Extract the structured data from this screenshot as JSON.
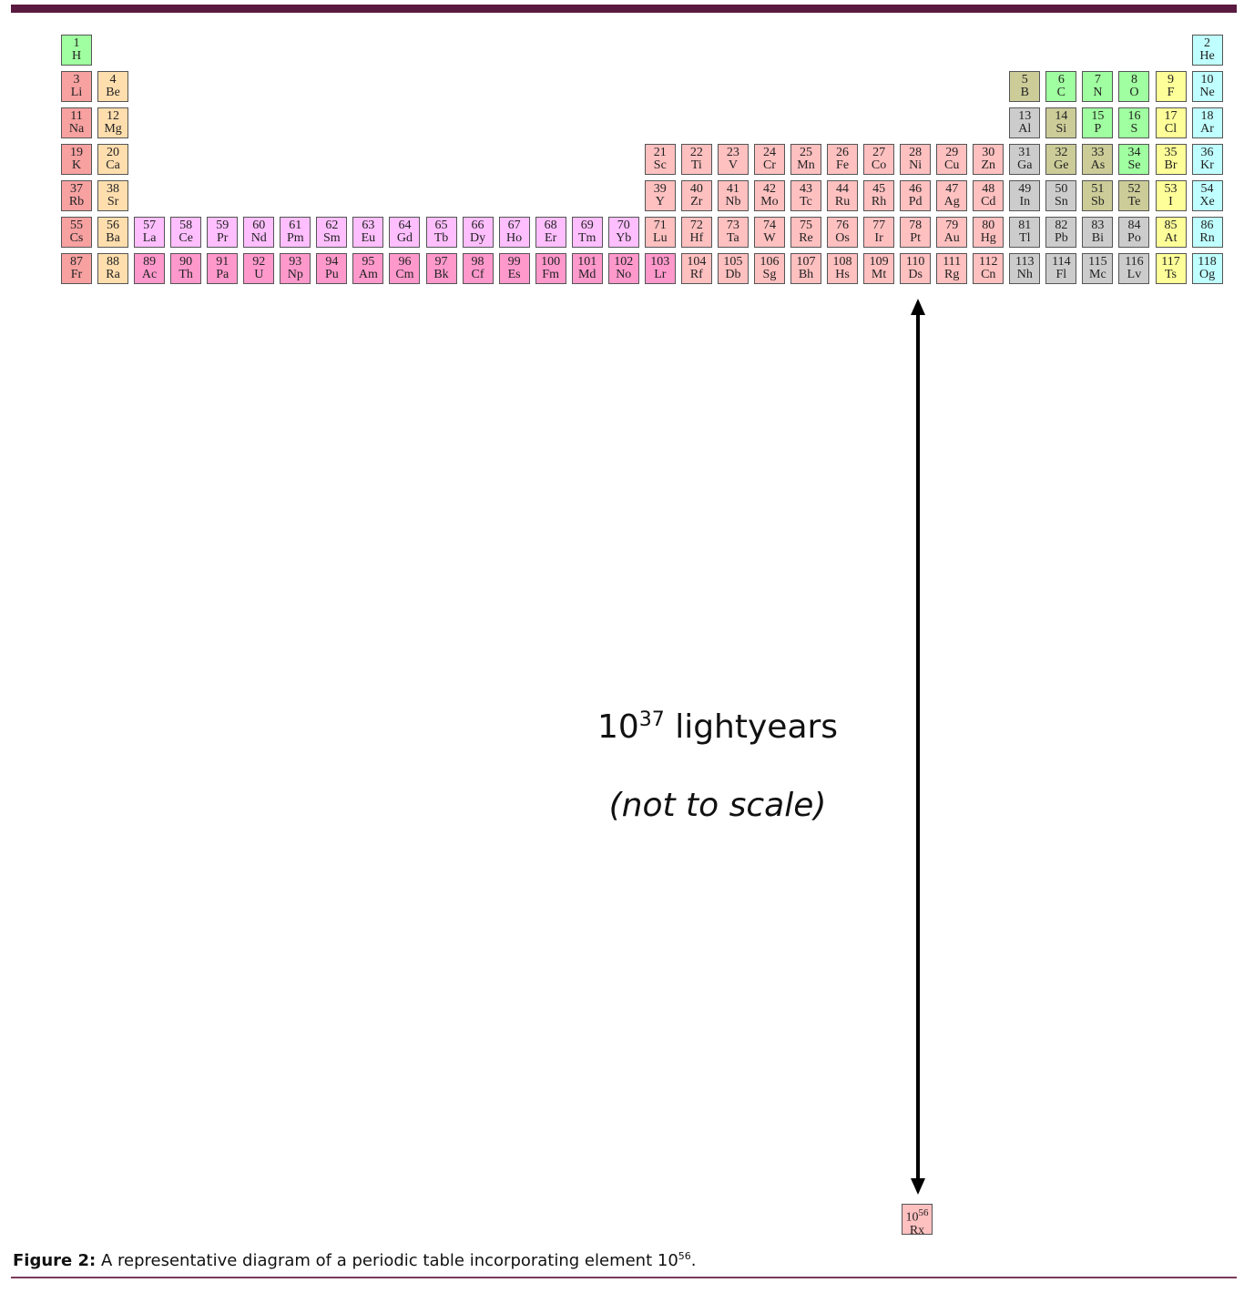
{
  "figure": {
    "elements": {
      "numbers": [
        1,
        2,
        3,
        4,
        5,
        6,
        7,
        8,
        9,
        10,
        11,
        12,
        13,
        14,
        15,
        16,
        17,
        18,
        19,
        20,
        21,
        22,
        23,
        24,
        25,
        26,
        27,
        28,
        29,
        30,
        31,
        32,
        33,
        34,
        35,
        36,
        37,
        38,
        39,
        40,
        41,
        42,
        43,
        44,
        45,
        46,
        47,
        48,
        49,
        50,
        51,
        52,
        53,
        54,
        55,
        56,
        57,
        58,
        59,
        60,
        61,
        62,
        63,
        64,
        65,
        66,
        67,
        68,
        69,
        70,
        71,
        72,
        73,
        74,
        75,
        76,
        77,
        78,
        79,
        80,
        81,
        82,
        83,
        84,
        85,
        86,
        87,
        88,
        89,
        90,
        91,
        92,
        93,
        94,
        95,
        96,
        97,
        98,
        99,
        100,
        101,
        102,
        103,
        104,
        105,
        106,
        107,
        108,
        109,
        110,
        111,
        112,
        113,
        114,
        115,
        116,
        117,
        118
      ],
      "symbols": [
        "H",
        "He",
        "Li",
        "Be",
        "B",
        "C",
        "N",
        "O",
        "F",
        "Ne",
        "Na",
        "Mg",
        "Al",
        "Si",
        "P",
        "S",
        "Cl",
        "Ar",
        "K",
        "Ca",
        "Sc",
        "Ti",
        "V",
        "Cr",
        "Mn",
        "Fe",
        "Co",
        "Ni",
        "Cu",
        "Zn",
        "Ga",
        "Ge",
        "As",
        "Se",
        "Br",
        "Kr",
        "Rb",
        "Sr",
        "Y",
        "Zr",
        "Nb",
        "Mo",
        "Tc",
        "Ru",
        "Rh",
        "Pd",
        "Ag",
        "Cd",
        "In",
        "Sn",
        "Sb",
        "Te",
        "I",
        "Xe",
        "Cs",
        "Ba",
        "La",
        "Ce",
        "Pr",
        "Nd",
        "Pm",
        "Sm",
        "Eu",
        "Gd",
        "Tb",
        "Dy",
        "Ho",
        "Er",
        "Tm",
        "Yb",
        "Lu",
        "Hf",
        "Ta",
        "W",
        "Re",
        "Os",
        "Ir",
        "Pt",
        "Au",
        "Hg",
        "Tl",
        "Pb",
        "Bi",
        "Po",
        "At",
        "Rn",
        "Fr",
        "Ra",
        "Ac",
        "Th",
        "Pa",
        "U",
        "Np",
        "Pu",
        "Am",
        "Cm",
        "Bk",
        "Cf",
        "Es",
        "Fm",
        "Md",
        "No",
        "Lr",
        "Rf",
        "Db",
        "Sg",
        "Bh",
        "Hs",
        "Mt",
        "Ds",
        "Rg",
        "Cn",
        "Nh",
        "Fl",
        "Mc",
        "Lv",
        "Ts",
        "Og"
      ]
    },
    "new_element": {
      "number": "10",
      "exponent": "56",
      "symbol": "Rx"
    },
    "distance": {
      "base": "10",
      "exponent": "37",
      "unit": "lightyears"
    },
    "note": "(not to scale)",
    "caption": {
      "label": "Figure 2:",
      "text": "A representative diagram of a periodic table incorporating element 10",
      "exponent": "56",
      "end": "."
    }
  }
}
